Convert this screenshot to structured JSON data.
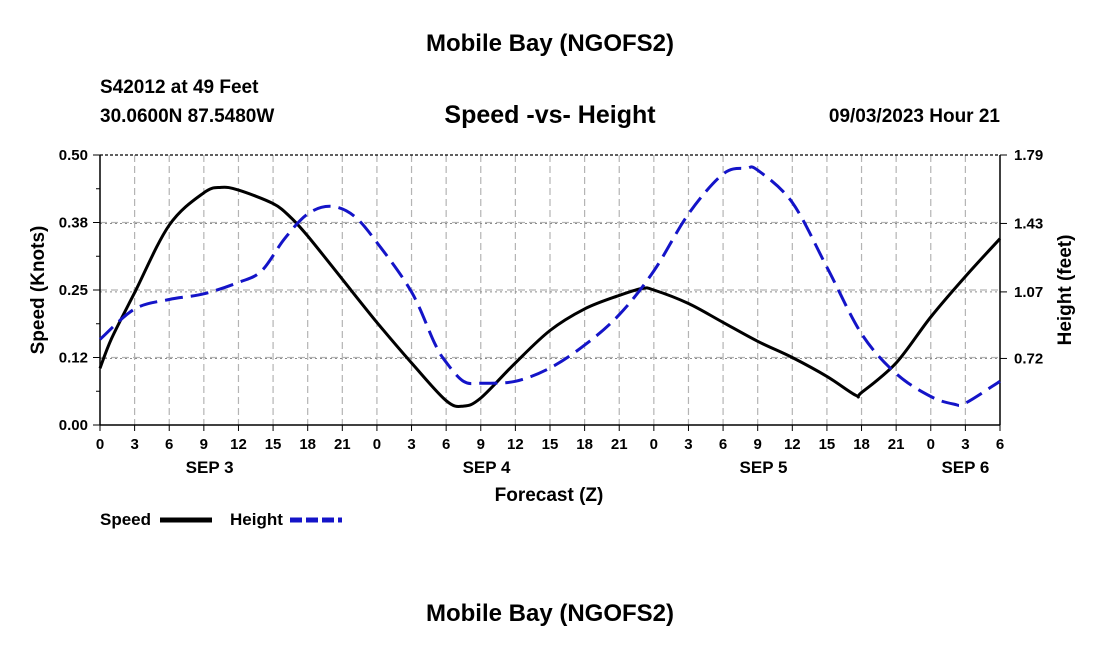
{
  "header": {
    "title": "Mobile Bay (NGOFS2)",
    "station": "S42012 at 49 Feet",
    "coords": "30.0600N  87.5480W",
    "subtitle": "Speed -vs- Height",
    "runtime": "09/03/2023 Hour 21"
  },
  "footer": {
    "title": "Mobile Bay (NGOFS2)"
  },
  "chart_data": {
    "type": "line",
    "xlabel": "Forecast (Z)",
    "x_hour_range": [
      0,
      78
    ],
    "x_tick_labels": [
      "0",
      "3",
      "6",
      "9",
      "12",
      "15",
      "18",
      "21",
      "0",
      "3",
      "6",
      "9",
      "12",
      "15",
      "18",
      "21",
      "0",
      "3",
      "6",
      "9",
      "12",
      "15",
      "18",
      "21",
      "0",
      "3",
      "6"
    ],
    "day_labels": [
      {
        "label": "SEP 3",
        "hour": 9.5
      },
      {
        "label": "SEP 4",
        "hour": 33.5
      },
      {
        "label": "SEP 5",
        "hour": 57.5
      },
      {
        "label": "SEP 6",
        "hour": 75
      }
    ],
    "y_left": {
      "label": "Speed (Knots)",
      "range": [
        0,
        0.5
      ],
      "ticks": [
        0.0,
        0.125,
        0.25,
        0.375,
        0.5
      ],
      "tick_labels": [
        "0.00",
        "0.12",
        "0.25",
        "0.38",
        "0.50"
      ]
    },
    "y_right": {
      "label": "Height (feet)",
      "range": [
        0.37,
        1.79
      ],
      "ticks": [
        0.72,
        1.07,
        1.43,
        1.79
      ],
      "tick_labels": [
        "0.72",
        "1.07",
        "1.43",
        "1.79"
      ]
    },
    "series": [
      {
        "name": "Speed",
        "axis": "left",
        "color": "#000000",
        "style": "solid",
        "x": [
          0,
          1,
          3,
          6,
          9,
          10.5,
          12,
          15,
          16.5,
          18,
          21,
          24,
          27,
          30,
          31.5,
          33,
          36,
          39,
          42,
          45,
          47,
          48,
          51,
          54,
          57,
          60,
          63,
          65.5,
          66,
          69,
          72,
          75,
          78
        ],
        "y": [
          0.105,
          0.16,
          0.245,
          0.37,
          0.43,
          0.44,
          0.435,
          0.41,
          0.385,
          0.35,
          0.27,
          0.19,
          0.115,
          0.045,
          0.035,
          0.05,
          0.115,
          0.175,
          0.215,
          0.24,
          0.253,
          0.25,
          0.225,
          0.19,
          0.155,
          0.125,
          0.09,
          0.055,
          0.06,
          0.115,
          0.2,
          0.275,
          0.345
        ]
      },
      {
        "name": "Height",
        "axis": "right",
        "color": "#1414c8",
        "style": "dashed",
        "x": [
          0,
          3,
          6,
          9,
          12,
          14,
          16,
          18,
          20,
          22,
          24,
          27,
          29,
          30,
          31.5,
          33,
          36,
          39,
          42,
          45,
          48,
          51,
          54,
          56,
          57,
          60,
          63,
          66,
          69,
          72,
          74,
          75,
          78
        ],
        "y": [
          0.82,
          0.98,
          1.03,
          1.06,
          1.12,
          1.18,
          1.35,
          1.48,
          1.52,
          1.47,
          1.33,
          1.07,
          0.8,
          0.7,
          0.6,
          0.59,
          0.6,
          0.67,
          0.79,
          0.95,
          1.18,
          1.48,
          1.69,
          1.72,
          1.71,
          1.54,
          1.2,
          0.85,
          0.64,
          0.52,
          0.48,
          0.485,
          0.6
        ]
      }
    ],
    "legend": {
      "position": "bottom-left",
      "entries": [
        {
          "label": "Speed",
          "color": "#000000",
          "style": "solid"
        },
        {
          "label": "Height",
          "color": "#1414c8",
          "style": "dashed"
        }
      ]
    }
  }
}
